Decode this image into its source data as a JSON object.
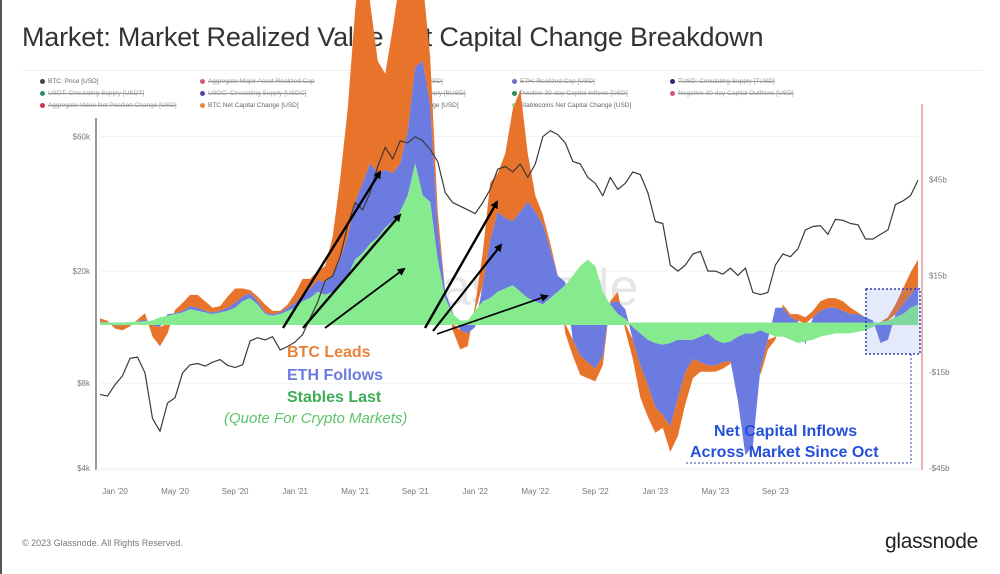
{
  "page": {
    "title": "Market: Market Realized Value Net Capital Change Breakdown",
    "copyright": "© 2023 Glassnode. All Rights Reserved.",
    "logo": "glassnode",
    "watermark": "glassnode"
  },
  "legend": [
    {
      "label": "BTC: Price [USD]",
      "color": "#444444",
      "active": true
    },
    {
      "label": "Aggregate Major Asset Realized Cap",
      "color": "#d05a6e",
      "active": false
    },
    {
      "label": "BTC: Realized Cap [USD]",
      "color": "#e08a3c",
      "active": false
    },
    {
      "label": "ETH: Realized Cap [USD]",
      "color": "#6a6fc4",
      "active": false
    },
    {
      "label": "TUSD: Circulating Supply [TUSD]",
      "color": "#2a2a7a",
      "active": false
    },
    {
      "label": "USDT: Circulating Supply [USDT]",
      "color": "#2e8b6a",
      "active": false
    },
    {
      "label": "USDC: Circulating Supply [USDC]",
      "color": "#4a4aa0",
      "active": false
    },
    {
      "label": "BUSD: Circulating Supply [BUSD]",
      "color": "#d8b030",
      "active": false
    },
    {
      "label": "Positive 30-day Capital Inflows [USD]",
      "color": "#2e8b5a",
      "active": false
    },
    {
      "label": "Negative 30-day Capital Outflows [USD]",
      "color": "#d05a6e",
      "active": false
    },
    {
      "label": "Aggregate Value Net Position Change [USD]",
      "color": "#d0304a",
      "active": false
    },
    {
      "label": "BTC Net Capital Change [USD]",
      "color": "#e8873a",
      "active": true
    },
    {
      "label": "ETH Net Capital Change [USD]",
      "color": "#6b7be0",
      "active": true
    },
    {
      "label": "Stablecoins Net Capital Change [USD]",
      "color": "#7ee08a",
      "active": true
    }
  ],
  "annotations": {
    "btc_leads": "BTC Leads",
    "eth_follows": "ETH Follows",
    "stables_last": "Stables Last",
    "quote": "(Quote For Crypto Markets)",
    "inflows_line1": "Net Capital Inflows",
    "inflows_line2": "Across Market Since Oct"
  },
  "colors": {
    "btc": "#e8732a",
    "eth": "#6b7be0",
    "stables": "#86ea8f",
    "price": "#3a3a3a",
    "annotation_orange": "#e8823a",
    "annotation_blue": "#6b7be0",
    "annotation_green": "#3fae56",
    "annotation_quote": "#5cc46a",
    "inflows_text": "#2550d8",
    "highlight_box": "#3040b0",
    "right_border": "#e08080"
  },
  "chart_data": {
    "type": "area",
    "title": "Market: Market Realized Value Net Capital Change Breakdown",
    "x_tick_labels": [
      "Jan '20",
      "May '20",
      "Sep '20",
      "Jan '21",
      "May '21",
      "Sep '21",
      "Jan '22",
      "May '22",
      "Sep '22",
      "Jan '23",
      "May '23",
      "Sep '23"
    ],
    "y_left": {
      "label": "BTC: Price [USD]",
      "scale": "log",
      "ticks": [
        "$4k",
        "$8k",
        "$20k",
        "$60k"
      ],
      "tick_values": [
        4000,
        8000,
        20000,
        60000
      ],
      "range": [
        4000,
        66000
      ]
    },
    "y_right": {
      "label": "Net Capital Change [USD]",
      "scale": "linear",
      "ticks": [
        "-$45b",
        "-$15b",
        "$15b",
        "$45b"
      ],
      "tick_values": [
        -45,
        -15,
        15,
        45
      ],
      "range": [
        -45,
        62
      ]
    },
    "x_start": "2019-12-01",
    "x_step": "half-month",
    "price_usd": [
      7300,
      7200,
      7900,
      8500,
      9800,
      9900,
      8700,
      6000,
      5400,
      6800,
      7100,
      8700,
      9300,
      9400,
      9200,
      9500,
      9700,
      9250,
      9100,
      9300,
      11300,
      11600,
      11400,
      11700,
      10500,
      10800,
      11200,
      11900,
      13600,
      15500,
      18500,
      19200,
      22500,
      29000,
      35000,
      33000,
      38000,
      47000,
      55000,
      50000,
      58000,
      57000,
      60000,
      58000,
      54000,
      49000,
      38000,
      35000,
      34000,
      33000,
      32000,
      35000,
      39000,
      46000,
      47000,
      45000,
      48000,
      43000,
      48000,
      60000,
      63000,
      61000,
      57000,
      49000,
      48000,
      43000,
      41000,
      37000,
      43000,
      39000,
      41000,
      45000,
      44000,
      38000,
      30000,
      29500,
      21000,
      20000,
      21000,
      23000,
      23500,
      20000,
      20000,
      19500,
      20500,
      19300,
      20500,
      16800,
      16500,
      16800,
      21000,
      23000,
      22500,
      24000,
      28000,
      28800,
      29000,
      27000,
      30500,
      30300,
      29500,
      29200,
      26000,
      26000,
      27000,
      28000,
      34500,
      35500,
      37000,
      42000
    ],
    "series": [
      {
        "name": "Stablecoins Net Capital Change [USD]",
        "unit": "$b",
        "values": [
          0.5,
          0.3,
          0.2,
          0.4,
          0.5,
          0.6,
          0.8,
          1.0,
          2.0,
          2.5,
          3.0,
          3.5,
          4.5,
          4.0,
          3.5,
          3.0,
          3.5,
          4.0,
          5.0,
          7.0,
          8.0,
          6.0,
          3.0,
          2.5,
          3.0,
          4.0,
          5.0,
          7.0,
          8.0,
          10.0,
          9.0,
          10.0,
          12.0,
          15.0,
          20.0,
          22.0,
          25.0,
          27.0,
          30.0,
          32.0,
          35.0,
          40.0,
          50.0,
          40.0,
          38.0,
          20.0,
          8.0,
          3.0,
          1.0,
          1.0,
          4.0,
          7.0,
          8.0,
          10.0,
          11.0,
          12.0,
          10.0,
          8.0,
          7.0,
          6.0,
          8.0,
          10.0,
          12.0,
          15.0,
          18.0,
          20.0,
          18.0,
          10.0,
          6.0,
          3.0,
          1.5,
          -1.0,
          -3.0,
          -5.0,
          -6.0,
          -6.5,
          -6.0,
          -5.0,
          -5.0,
          -5.0,
          -4.0,
          -3.0,
          -5.0,
          -6.0,
          -5.5,
          -4.0,
          -3.0,
          -3.0,
          -2.0,
          -3.0,
          -4.0,
          -4.0,
          -5.0,
          -6.0,
          -5.5,
          -5.0,
          -4.0,
          -3.5,
          -3.0,
          -3.0,
          -3.0,
          -2.5,
          -2.0,
          -1.0,
          0.5,
          1.0,
          2.0,
          3.0,
          5.0,
          6.0
        ]
      },
      {
        "name": "ETH Net Capital Change [USD]",
        "unit": "$b",
        "values": [
          0.2,
          0.1,
          -0.5,
          -0.5,
          -0.3,
          0.2,
          0.5,
          -0.5,
          -1.0,
          0.5,
          0.3,
          0.5,
          1.0,
          1.0,
          0.5,
          0.5,
          0.5,
          1.0,
          1.5,
          1.5,
          1.5,
          1.0,
          0.5,
          0.5,
          0.5,
          1.0,
          1.5,
          2.0,
          3.0,
          3.5,
          4.0,
          5.0,
          8.0,
          12.0,
          18.0,
          22.0,
          25.0,
          20.0,
          18.0,
          15.0,
          15.0,
          20.0,
          30.0,
          42.0,
          30.0,
          10.0,
          2.0,
          0.5,
          -2.0,
          -3.0,
          -1.0,
          5.0,
          18.0,
          25.0,
          22.0,
          20.0,
          25.0,
          30.0,
          28.0,
          25.0,
          15.0,
          5.0,
          1.0,
          -5.0,
          -10.0,
          -12.0,
          -14.0,
          -10.0,
          0.5,
          4.0,
          3.0,
          -4.0,
          -10.0,
          -14.0,
          -20.0,
          -22.0,
          -26.0,
          -18.0,
          -10.0,
          -6.0,
          -8.0,
          -10.0,
          -8.0,
          -6.0,
          -6.0,
          -20.0,
          -38.0,
          -35.0,
          -12.0,
          -2.0,
          5.0,
          5.0,
          2.0,
          1.0,
          -1.0,
          2.0,
          4.0,
          5.0,
          5.0,
          4.0,
          3.0,
          3.0,
          2.0,
          1.0,
          -6.0,
          -5.0,
          1.0,
          3.0,
          4.0,
          6.0
        ]
      },
      {
        "name": "BTC Net Capital Change [USD]",
        "unit": "$b",
        "values": [
          1.0,
          0.5,
          -1.0,
          -1.5,
          -0.5,
          0.5,
          2.0,
          -3.5,
          -6.0,
          -3.0,
          1.0,
          2.5,
          3.5,
          4.0,
          3.0,
          1.5,
          1.5,
          3.5,
          4.5,
          2.5,
          1.0,
          1.5,
          2.5,
          1.0,
          0.5,
          1.0,
          3.0,
          5.0,
          3.0,
          3.0,
          5.0,
          12.0,
          25.0,
          40.0,
          60.0,
          75.0,
          50.0,
          35.0,
          30.0,
          45.0,
          58.0,
          55.0,
          40.0,
          25.0,
          15.0,
          5.0,
          0.0,
          -2.0,
          -6.0,
          -4.0,
          2.0,
          10.0,
          18.0,
          12.0,
          20.0,
          35.0,
          38.0,
          15.0,
          5.0,
          3.0,
          2.0,
          0.0,
          -3.0,
          -5.0,
          -6.0,
          -5.0,
          -4.0,
          -3.0,
          0.5,
          3.0,
          -2.0,
          -6.0,
          -10.0,
          -10.0,
          -8.0,
          -4.0,
          -8.0,
          -12.0,
          -10.0,
          -6.0,
          -3.0,
          -2.0,
          -2.0,
          -2.0,
          -1.0,
          0.0,
          0.0,
          0.0,
          -2.0,
          -3.0,
          -1.0,
          1.0,
          1.0,
          2.0,
          2.0,
          2.0,
          3.0,
          3.0,
          3.0,
          3.0,
          2.0,
          0.5,
          0.0,
          0.0,
          0.0,
          1.0,
          3.0,
          5.0,
          7.0,
          8.0
        ]
      }
    ],
    "legend_position": "top",
    "grid": true
  }
}
